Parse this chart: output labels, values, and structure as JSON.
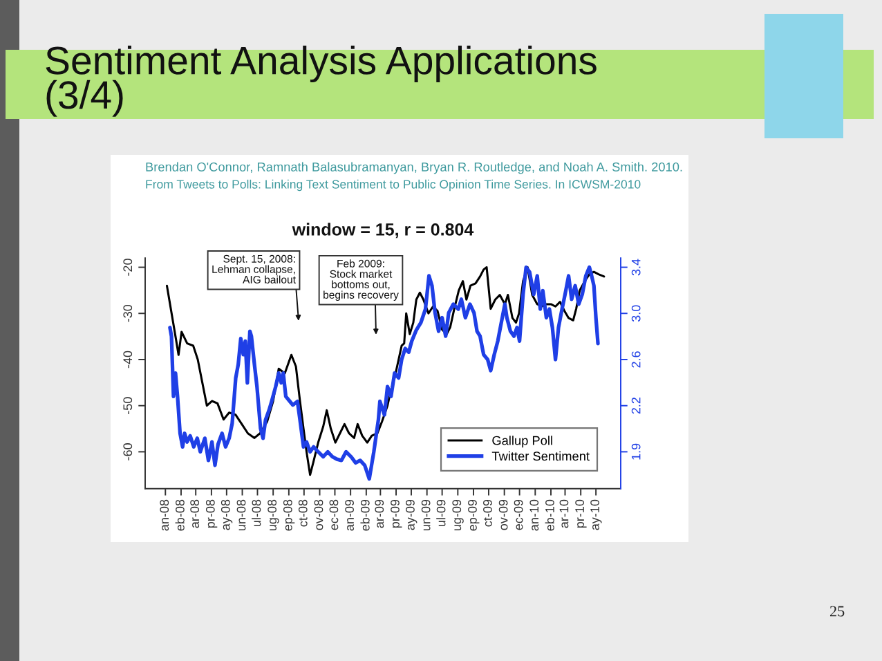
{
  "chart_data": {
    "type": "line",
    "title": "Sentiment Analysis Applications\n(3/4)",
    "subtitle": "window = 15, r = 0.804",
    "annotations": [
      "Brendan O'Connor, Ramnath Balasubramanyan, Bryan R. Routledge, and Noah A. Smith. 2010.",
      "From Tweets to Polls: Linking Text Sentiment to Public Opinion Time Series. In ICWSM-2010",
      "Sept. 15, 2008:\nLehman collapse,\nAIG bailout",
      "Feb 2009:\nStock market\nbottoms out,\nbegins recovery",
      "25"
    ],
    "series": [
      {
        "name": "Gallup Poll",
        "color": "#000000",
        "x": [
          "2008-01-04",
          "2008-01-21",
          "2008-01-27",
          "2008-02-02",
          "2008-02-13",
          "2008-02-25",
          "2008-03-05",
          "2008-03-14",
          "2008-03-23",
          "2008-04-02",
          "2008-04-13",
          "2008-04-25",
          "2008-05-06",
          "2008-05-19",
          "2008-05-31",
          "2008-06-12",
          "2008-06-25",
          "2008-07-06",
          "2008-07-20",
          "2008-08-01",
          "2008-08-12",
          "2008-08-24",
          "2008-09-06",
          "2008-09-15",
          "2008-09-23",
          "2008-09-30",
          "2008-10-06",
          "2008-10-13",
          "2008-10-20",
          "2008-10-29",
          "2008-11-08",
          "2008-11-15",
          "2008-11-23",
          "2008-12-02",
          "2008-12-11",
          "2008-12-20",
          "2008-12-29",
          "2009-01-08",
          "2009-01-15",
          "2009-01-24",
          "2009-02-03",
          "2009-02-12",
          "2009-02-23",
          "2009-03-04",
          "2009-03-15",
          "2009-03-22",
          "2009-03-29",
          "2009-04-06",
          "2009-04-12",
          "2009-04-17",
          "2009-04-21",
          "2009-04-28",
          "2009-05-05",
          "2009-05-11",
          "2009-05-18",
          "2009-05-25",
          "2009-06-04",
          "2009-06-13",
          "2009-06-22",
          "2009-07-01",
          "2009-07-10",
          "2009-07-17",
          "2009-07-25",
          "2009-08-03",
          "2009-08-11",
          "2009-08-18",
          "2009-08-26",
          "2009-09-05",
          "2009-09-14",
          "2009-09-21",
          "2009-09-27",
          "2009-10-05",
          "2009-10-14",
          "2009-10-23",
          "2009-11-02",
          "2009-11-08",
          "2009-11-17",
          "2009-11-24",
          "2009-11-30",
          "2009-12-08",
          "2009-12-17",
          "2009-12-26",
          "2010-01-05",
          "2010-01-14",
          "2010-01-23",
          "2010-02-01",
          "2010-02-10",
          "2010-02-19",
          "2010-02-28",
          "2010-03-08",
          "2010-03-17",
          "2010-03-23",
          "2010-03-30",
          "2010-04-09",
          "2010-04-18",
          "2010-04-27",
          "2010-05-06",
          "2010-05-17"
        ],
        "values": [
          -24,
          -35,
          -39,
          -34,
          -36.5,
          -37,
          -40,
          -45,
          -50,
          -49,
          -49.5,
          -53,
          -51.5,
          -52,
          -54,
          -56,
          -57,
          -56,
          -53.5,
          -49,
          -42,
          -43,
          -39,
          -41.5,
          -49,
          -55,
          -60,
          -65,
          -62,
          -58,
          -54.5,
          -51,
          -55,
          -58,
          -56,
          -54,
          -56,
          -57,
          -54,
          -56.5,
          -58,
          -56.5,
          -56,
          -53.5,
          -50,
          -46.5,
          -44,
          -40,
          -37,
          -36.5,
          -30,
          -34.5,
          -32,
          -27,
          -25.5,
          -27,
          -30,
          -28.5,
          -29.5,
          -33.5,
          -34.5,
          -33,
          -29,
          -25,
          -23,
          -27,
          -24,
          -23.5,
          -22,
          -20.5,
          -20,
          -29,
          -27,
          -26,
          -28,
          -26,
          -31,
          -32,
          -30,
          -23,
          -20,
          -26,
          -28,
          -28.5,
          -28,
          -28,
          -28.5,
          -27.5,
          -29.5,
          -31,
          -31.5,
          -29,
          -25,
          -23,
          -21.5,
          -21,
          -21.5,
          -22
        ]
      },
      {
        "name": "Twitter Sentiment",
        "color": "#1f3fe6",
        "axis": "y2",
        "x": [
          "2008-01-10",
          "2008-01-13",
          "2008-01-17",
          "2008-01-21",
          "2008-01-25",
          "2008-01-30",
          "2008-02-04",
          "2008-02-08",
          "2008-02-13",
          "2008-02-19",
          "2008-02-26",
          "2008-03-04",
          "2008-03-10",
          "2008-03-19",
          "2008-03-26",
          "2008-04-02",
          "2008-04-08",
          "2008-04-14",
          "2008-04-22",
          "2008-04-29",
          "2008-05-06",
          "2008-05-12",
          "2008-05-19",
          "2008-05-24",
          "2008-05-29",
          "2008-06-03",
          "2008-06-07",
          "2008-06-11",
          "2008-06-16",
          "2008-06-19",
          "2008-06-25",
          "2008-06-30",
          "2008-07-07",
          "2008-07-12",
          "2008-07-17",
          "2008-07-24",
          "2008-07-29",
          "2008-08-06",
          "2008-08-12",
          "2008-08-17",
          "2008-08-21",
          "2008-08-26",
          "2008-09-03",
          "2008-09-09",
          "2008-09-18",
          "2008-09-23",
          "2008-09-30",
          "2008-10-06",
          "2008-10-13",
          "2008-10-20",
          "2008-10-29",
          "2008-11-08",
          "2008-11-17",
          "2008-11-26",
          "2008-12-05",
          "2008-12-14",
          "2008-12-23",
          "2009-01-02",
          "2009-01-11",
          "2009-01-20",
          "2009-01-29",
          "2009-02-07",
          "2009-02-16",
          "2009-02-25",
          "2009-02-28",
          "2009-03-09",
          "2009-03-15",
          "2009-03-22",
          "2009-03-29",
          "2009-04-06",
          "2009-04-12",
          "2009-04-19",
          "2009-04-26",
          "2009-05-02",
          "2009-05-11",
          "2009-05-20",
          "2009-05-29",
          "2009-06-05",
          "2009-06-11",
          "2009-06-17",
          "2009-06-24",
          "2009-07-01",
          "2009-07-08",
          "2009-07-14",
          "2009-07-23",
          "2009-08-02",
          "2009-08-08",
          "2009-08-16",
          "2009-08-25",
          "2009-09-02",
          "2009-09-08",
          "2009-09-14",
          "2009-09-21",
          "2009-09-29",
          "2009-10-05",
          "2009-10-12",
          "2009-10-19",
          "2009-10-26",
          "2009-11-02",
          "2009-11-06",
          "2009-11-13",
          "2009-11-20",
          "2009-11-26",
          "2009-12-01",
          "2009-12-08",
          "2009-12-14",
          "2009-12-21",
          "2009-12-29",
          "2010-01-05",
          "2010-01-11",
          "2010-01-16",
          "2010-01-23",
          "2010-01-29",
          "2010-02-04",
          "2010-02-10",
          "2010-02-16",
          "2010-02-23",
          "2010-03-01",
          "2010-03-08",
          "2010-03-14",
          "2010-03-21",
          "2010-03-28",
          "2010-04-04",
          "2010-04-11",
          "2010-04-18",
          "2010-04-22",
          "2010-04-27",
          "2010-05-01",
          "2010-05-05"
        ],
        "values": [
          2.88,
          2.81,
          2.32,
          2.51,
          2.32,
          2.02,
          1.91,
          2.02,
          1.95,
          2.0,
          1.91,
          1.98,
          1.87,
          1.98,
          1.8,
          1.95,
          1.76,
          1.93,
          2.02,
          1.91,
          1.98,
          2.1,
          2.47,
          2.58,
          2.79,
          2.66,
          2.77,
          2.43,
          2.85,
          2.81,
          2.58,
          2.4,
          2.06,
          1.98,
          2.13,
          2.21,
          2.28,
          2.4,
          2.51,
          2.43,
          2.51,
          2.32,
          2.28,
          2.25,
          2.28,
          2.13,
          1.91,
          1.95,
          1.87,
          1.91,
          1.87,
          1.83,
          1.87,
          1.83,
          1.81,
          1.8,
          1.87,
          1.83,
          1.78,
          1.8,
          1.76,
          1.65,
          1.87,
          2.13,
          2.28,
          2.17,
          2.4,
          2.32,
          2.51,
          2.47,
          2.62,
          2.71,
          2.68,
          2.77,
          2.86,
          2.92,
          3.03,
          3.3,
          3.22,
          3.0,
          2.85,
          2.96,
          2.81,
          3.0,
          3.07,
          3.03,
          3.11,
          2.96,
          3.07,
          3.0,
          2.85,
          2.81,
          2.66,
          2.62,
          2.53,
          2.66,
          2.77,
          2.92,
          3.07,
          2.96,
          2.85,
          2.81,
          2.88,
          2.77,
          3.15,
          3.37,
          3.33,
          3.15,
          3.3,
          3.03,
          3.18,
          2.96,
          3.03,
          2.88,
          2.62,
          2.88,
          3.03,
          3.15,
          3.3,
          3.11,
          3.22,
          3.07,
          3.15,
          3.3,
          3.37,
          3.31,
          3.22,
          2.96,
          2.75
        ]
      }
    ],
    "xlim": [
      "2007-11-22",
      "2010-06-19"
    ],
    "xticks": [
      {
        "value": "2008-01-01",
        "label": "an-08"
      },
      {
        "value": "2008-02-01",
        "label": "eb-08"
      },
      {
        "value": "2008-03-01",
        "label": "ar-08"
      },
      {
        "value": "2008-04-01",
        "label": "pr-08"
      },
      {
        "value": "2008-05-01",
        "label": "ay-08"
      },
      {
        "value": "2008-06-01",
        "label": "un-08"
      },
      {
        "value": "2008-07-01",
        "label": "ul-08"
      },
      {
        "value": "2008-08-01",
        "label": "ug-08"
      },
      {
        "value": "2008-09-01",
        "label": "ep-08"
      },
      {
        "value": "2008-10-01",
        "label": "ct-08"
      },
      {
        "value": "2008-11-01",
        "label": "ov-08"
      },
      {
        "value": "2008-12-01",
        "label": "ec-08"
      },
      {
        "value": "2009-01-01",
        "label": "an-09"
      },
      {
        "value": "2009-02-01",
        "label": "eb-09"
      },
      {
        "value": "2009-03-01",
        "label": "ar-09"
      },
      {
        "value": "2009-04-01",
        "label": "pr-09"
      },
      {
        "value": "2009-05-01",
        "label": "ay-09"
      },
      {
        "value": "2009-06-01",
        "label": "un-09"
      },
      {
        "value": "2009-07-01",
        "label": "ul-09"
      },
      {
        "value": "2009-08-01",
        "label": "ug-09"
      },
      {
        "value": "2009-09-01",
        "label": "ep-09"
      },
      {
        "value": "2009-10-01",
        "label": "ct-09"
      },
      {
        "value": "2009-11-01",
        "label": "ov-09"
      },
      {
        "value": "2009-12-01",
        "label": "ec-09"
      },
      {
        "value": "2010-01-01",
        "label": "an-10"
      },
      {
        "value": "2010-02-01",
        "label": "eb-10"
      },
      {
        "value": "2010-03-01",
        "label": "ar-10"
      },
      {
        "value": "2010-04-01",
        "label": "pr-10"
      },
      {
        "value": "2010-05-01",
        "label": "ay-10"
      }
    ],
    "ylim": [
      -68,
      -18
    ],
    "yticks": [
      -60,
      -50,
      -40,
      -30,
      -20
    ],
    "y2lim": [
      1.57,
      3.445
    ],
    "y2ticks": [
      {
        "value": 1.87,
        "label": "1.9"
      },
      {
        "value": 2.245,
        "label": "2.2"
      },
      {
        "value": 2.62,
        "label": "2.6"
      },
      {
        "value": 2.995,
        "label": "3.0"
      },
      {
        "value": 3.37,
        "label": "3.4"
      }
    ],
    "legend": "bottom right"
  }
}
